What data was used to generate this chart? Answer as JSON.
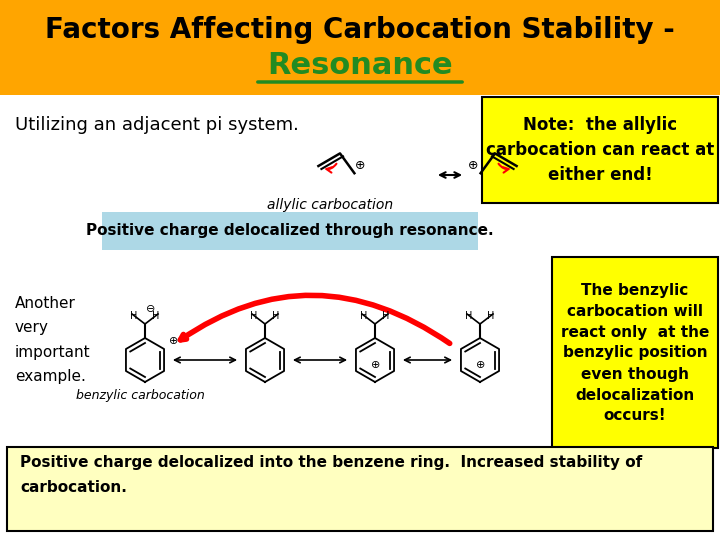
{
  "title_line1": "Factors Affecting Carbocation Stability -",
  "title_line2": "Resonance",
  "title_bg": "#FFA500",
  "title_color": "#000000",
  "title2_color": "#228B22",
  "bg_color": "#FFFFFF",
  "subtitle1": "Utilizing an adjacent pi system.",
  "note1_text": "Note:  the allylic\ncarbocation can react at\neither end!",
  "note1_bg": "#FFFF00",
  "positive_charge_text": "Positive charge delocalized through resonance.",
  "positive_charge_bg": "#ADD8E6",
  "another_text": "Another\nvery\nimportant\nexample.",
  "benzylic_note": "The benzylic\ncarbocation will\nreact only  at the\nbenzylic position\neven though\ndelocalization\noccurs!",
  "benzylic_note_bg": "#FFFF00",
  "bottom_text": "Positive charge delocalized into the benzene ring.  Increased stability of\ncarbocation.",
  "bottom_bg": "#FFFFC0"
}
